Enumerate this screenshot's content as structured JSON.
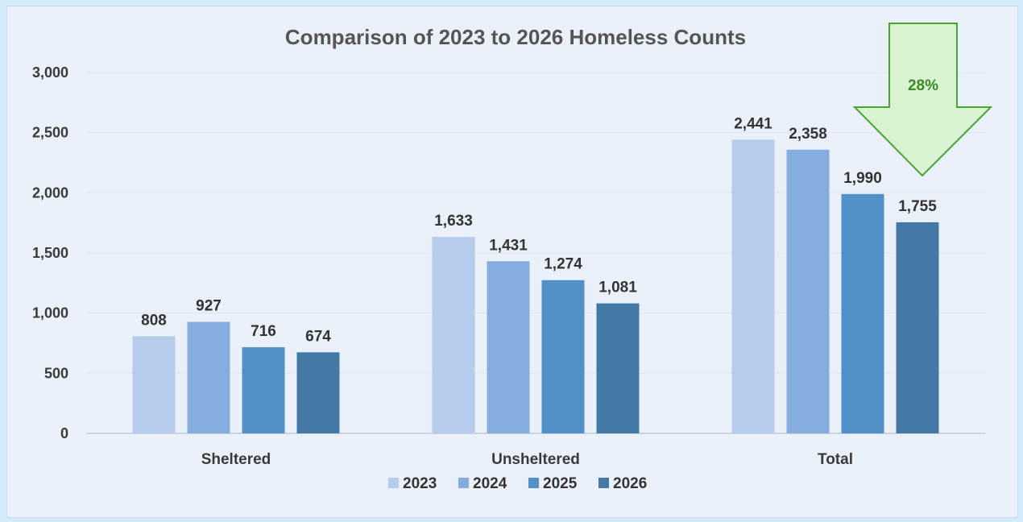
{
  "chart_data": {
    "type": "bar",
    "title": "Comparison of 2023 to 2026 Homeless Counts",
    "categories": [
      "Sheltered",
      "Unsheltered",
      "Total"
    ],
    "series": [
      {
        "name": "2023",
        "color": "#b7cceb",
        "values": [
          808,
          1633,
          2441
        ]
      },
      {
        "name": "2024",
        "color": "#84acdc",
        "values": [
          927,
          1431,
          2358
        ]
      },
      {
        "name": "2025",
        "color": "#5291c8",
        "values": [
          716,
          1274,
          1990
        ]
      },
      {
        "name": "2026",
        "color": "#4479a6",
        "values": [
          674,
          1081,
          1755
        ]
      }
    ],
    "data_labels": [
      [
        "808",
        "1,633",
        "2,441"
      ],
      [
        "927",
        "1,431",
        "2,358"
      ],
      [
        "716",
        "1,274",
        "1,990"
      ],
      [
        "674",
        "1,081",
        "1,755"
      ]
    ],
    "ylim": [
      0,
      3000
    ],
    "yticks": [
      0,
      500,
      1000,
      1500,
      2000,
      2500,
      3000
    ],
    "ytick_labels": [
      "0",
      "500",
      "1,000",
      "1,500",
      "2,000",
      "2,500",
      "3,000"
    ],
    "xlabel": "",
    "ylabel": "",
    "grid": true,
    "legend_position": "bottom",
    "annotation": {
      "text": "28%",
      "fill_color": "#d8f3d0",
      "stroke_color": "#4aa335"
    }
  }
}
